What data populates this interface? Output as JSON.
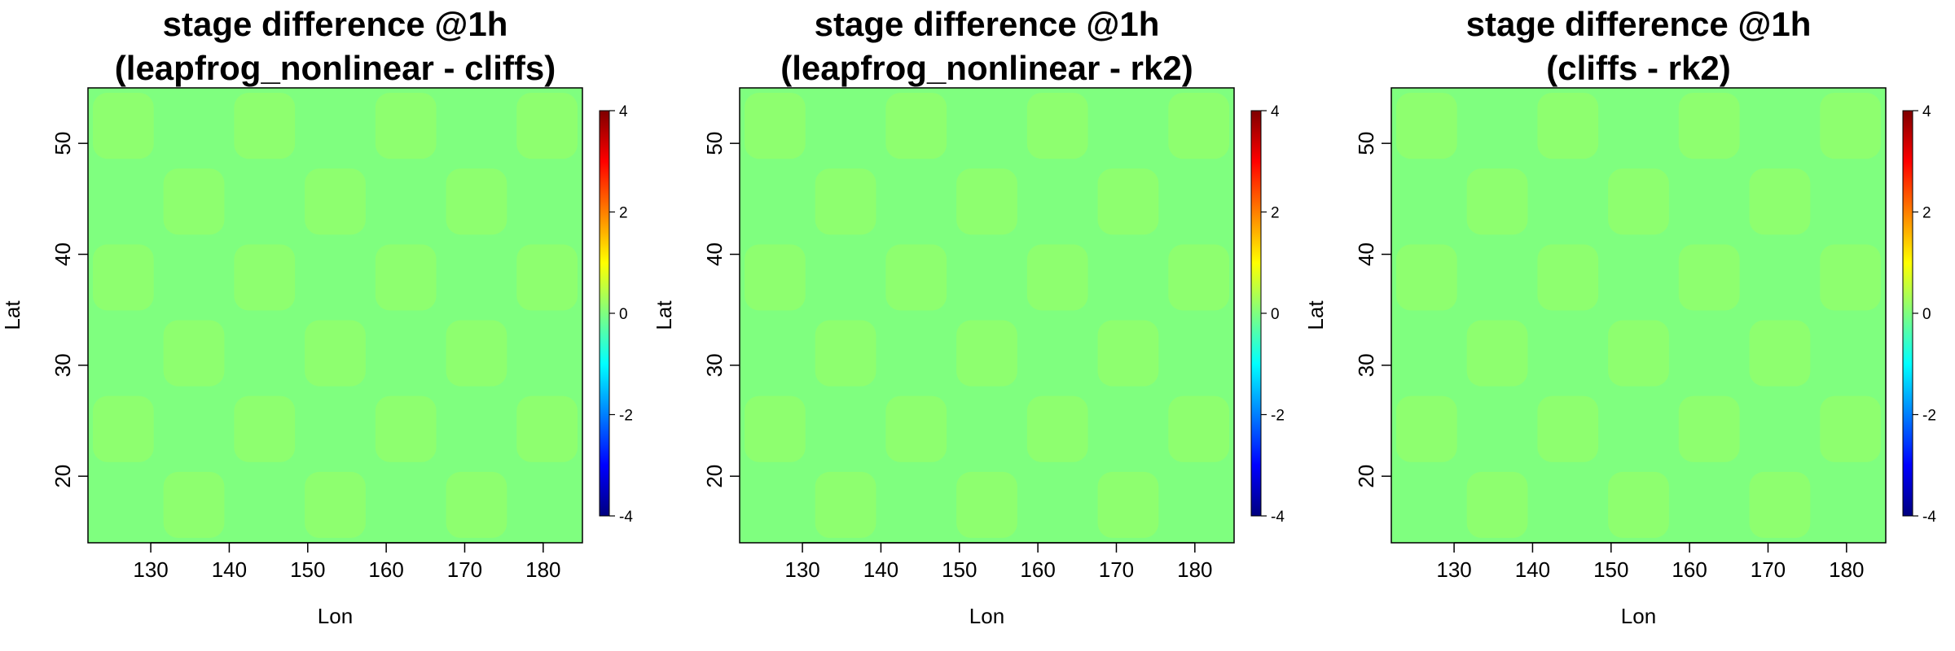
{
  "chart_data": [
    {
      "type": "heatmap",
      "title_line1": "stage difference @1h",
      "title_line2": "(leapfrog_nonlinear - cliffs)",
      "xlabel": "Lon",
      "ylabel": "Lat",
      "xlim": [
        122,
        185
      ],
      "ylim": [
        14,
        55
      ],
      "xticks": [
        130,
        140,
        150,
        160,
        170,
        180
      ],
      "yticks": [
        20,
        30,
        40,
        50
      ],
      "zlim": [
        -4,
        4
      ],
      "colorbar_ticks": [
        4,
        2,
        0,
        -2,
        -4
      ],
      "field_value": 0,
      "colorscale": [
        "#00007f",
        "#0000ff",
        "#007fff",
        "#00ffff",
        "#7fff7f",
        "#ffff00",
        "#ff7f00",
        "#ff0000",
        "#7f0000"
      ]
    },
    {
      "type": "heatmap",
      "title_line1": "stage difference @1h",
      "title_line2": "(leapfrog_nonlinear - rk2)",
      "xlabel": "Lon",
      "ylabel": "Lat",
      "xlim": [
        122,
        185
      ],
      "ylim": [
        14,
        55
      ],
      "xticks": [
        130,
        140,
        150,
        160,
        170,
        180
      ],
      "yticks": [
        20,
        30,
        40,
        50
      ],
      "zlim": [
        -4,
        4
      ],
      "colorbar_ticks": [
        4,
        2,
        0,
        -2,
        -4
      ],
      "field_value": 0,
      "colorscale": [
        "#00007f",
        "#0000ff",
        "#007fff",
        "#00ffff",
        "#7fff7f",
        "#ffff00",
        "#ff7f00",
        "#ff0000",
        "#7f0000"
      ]
    },
    {
      "type": "heatmap",
      "title_line1": "stage difference @1h",
      "title_line2": "(cliffs - rk2)",
      "xlabel": "Lon",
      "ylabel": "Lat",
      "xlim": [
        122,
        185
      ],
      "ylim": [
        14,
        55
      ],
      "xticks": [
        130,
        140,
        150,
        160,
        170,
        180
      ],
      "yticks": [
        20,
        30,
        40,
        50
      ],
      "zlim": [
        -4,
        4
      ],
      "colorbar_ticks": [
        4,
        2,
        0,
        -2,
        -4
      ],
      "field_value": 0,
      "colorscale": [
        "#00007f",
        "#0000ff",
        "#007fff",
        "#00ffff",
        "#7fff7f",
        "#ffff00",
        "#ff7f00",
        "#ff0000",
        "#7f0000"
      ]
    }
  ]
}
